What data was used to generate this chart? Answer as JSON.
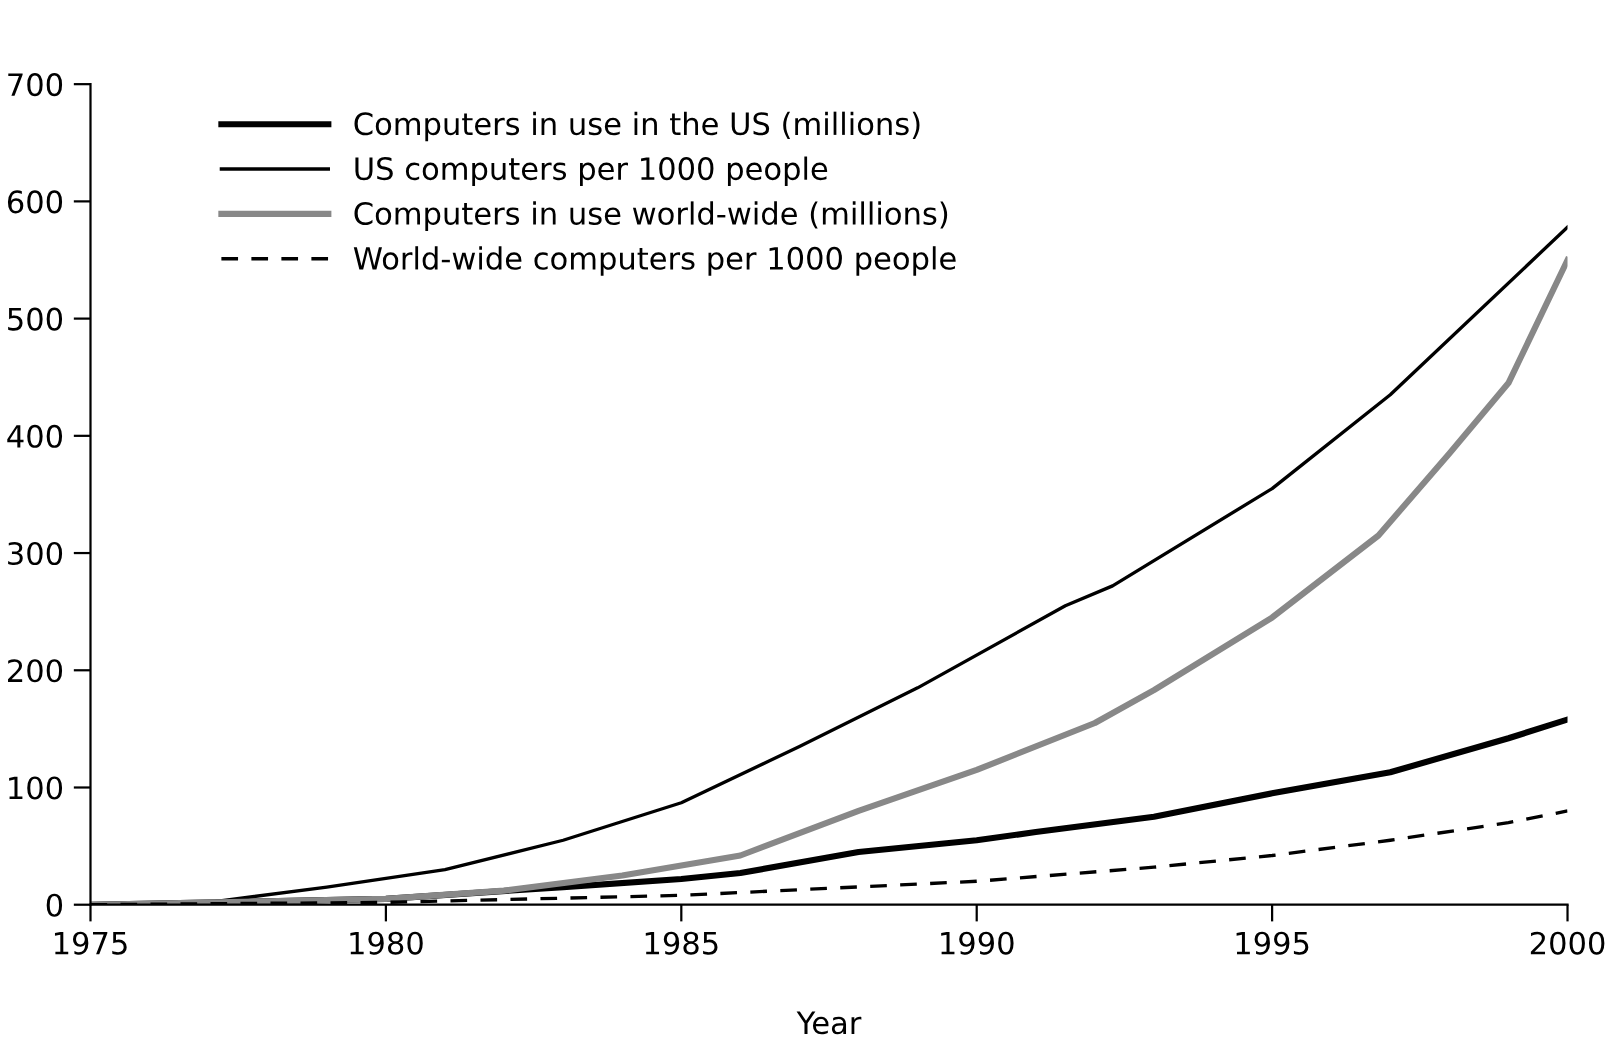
{
  "chart_data": {
    "type": "line",
    "xlabel": "Year",
    "xlim": [
      1975,
      2000
    ],
    "xticks": [
      1975,
      1980,
      1985,
      1990,
      1995,
      2000
    ],
    "ylim": [
      0,
      700
    ],
    "yticks": [
      0,
      100,
      200,
      300,
      400,
      500,
      600,
      700
    ],
    "grid": false,
    "legend": "top left",
    "marker": "none",
    "series": [
      {
        "name": "Computers in use in the US (millions)",
        "color": "#000000",
        "line_style": "solid",
        "x": [
          1975,
          1980,
          1983,
          1985,
          1986,
          1988,
          1990,
          1991,
          1993,
          1995,
          1997,
          1999,
          2000
        ],
        "values": [
          0,
          5,
          15,
          22,
          27,
          45,
          55,
          62,
          75,
          95,
          113,
          142,
          158
        ]
      },
      {
        "name": "US computers per 1000 people",
        "color": "#000000",
        "line_style": "solid",
        "x": [
          1975,
          1977,
          1979,
          1981,
          1983,
          1985,
          1987,
          1989,
          1991.5,
          1992.3,
          1995,
          1997,
          2000
        ],
        "values": [
          0,
          2,
          15,
          30,
          55,
          87,
          135,
          185,
          255,
          272,
          355,
          435,
          578
        ]
      },
      {
        "name": "Computers in use world-wide (millions)",
        "color": "#888888",
        "line_style": "solid",
        "x": [
          1975,
          1980,
          1982,
          1984,
          1986,
          1988,
          1990,
          1992,
          1993,
          1995,
          1996.8,
          1998,
          1999,
          2000
        ],
        "values": [
          0,
          5,
          12,
          25,
          42,
          80,
          115,
          155,
          183,
          245,
          315,
          385,
          445,
          550
        ]
      },
      {
        "name": "World-wide computers per 1000 people",
        "color": "#000000",
        "line_style": "dashed",
        "x": [
          1975,
          1980,
          1985,
          1990,
          1993,
          1995,
          1997,
          1999,
          2000
        ],
        "values": [
          0,
          2,
          8,
          20,
          32,
          42,
          55,
          70,
          80
        ]
      }
    ]
  }
}
